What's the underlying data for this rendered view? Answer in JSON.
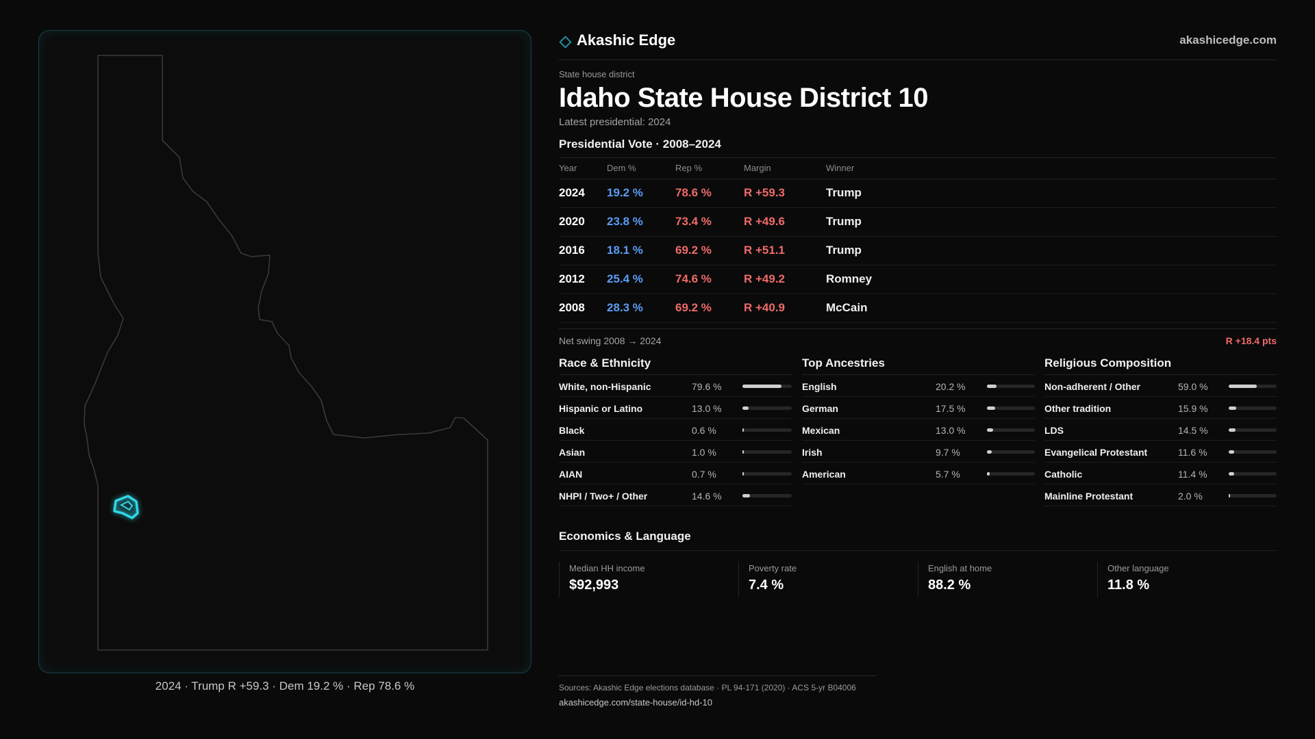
{
  "brand": {
    "name": "Akashic Edge",
    "url": "akashicedge.com",
    "icon": "diamond-icon",
    "accent": "#1f8f9c"
  },
  "district": {
    "eyebrow": "State house district",
    "title": "Idaho State House District 10",
    "latest": "Latest presidential: 2024"
  },
  "vote": {
    "title": "Presidential Vote · 2008–2024",
    "headers": {
      "year": "Year",
      "dem": "Dem %",
      "rep": "Rep %",
      "margin": "Margin",
      "winner": "Winner"
    },
    "rows": [
      {
        "year": "2024",
        "dem": "19.2 %",
        "rep": "78.6 %",
        "margin": "R +59.3",
        "winner": "Trump"
      },
      {
        "year": "2020",
        "dem": "23.8 %",
        "rep": "73.4 %",
        "margin": "R +49.6",
        "winner": "Trump"
      },
      {
        "year": "2016",
        "dem": "18.1 %",
        "rep": "69.2 %",
        "margin": "R +51.1",
        "winner": "Trump"
      },
      {
        "year": "2012",
        "dem": "25.4 %",
        "rep": "74.6 %",
        "margin": "R +49.2",
        "winner": "Romney"
      },
      {
        "year": "2008",
        "dem": "28.3 %",
        "rep": "69.2 %",
        "margin": "R +40.9",
        "winner": "McCain"
      }
    ],
    "colors": {
      "dem": "#5b9cf5",
      "rep": "#f06a6a"
    }
  },
  "swing": {
    "label": "Net swing 2008 → 2024",
    "value": "R +18.4 pts"
  },
  "race": {
    "title": "Race & Ethnicity",
    "items": [
      {
        "label": "White, non-Hispanic",
        "value": "79.6 %",
        "pct": 79.6
      },
      {
        "label": "Hispanic or Latino",
        "value": "13.0 %",
        "pct": 13.0
      },
      {
        "label": "Black",
        "value": "0.6 %",
        "pct": 0.6
      },
      {
        "label": "Asian",
        "value": "1.0 %",
        "pct": 1.0
      },
      {
        "label": "AIAN",
        "value": "0.7 %",
        "pct": 0.7
      },
      {
        "label": "NHPI / Two+ / Other",
        "value": "14.6 %",
        "pct": 14.6
      }
    ]
  },
  "ancestry": {
    "title": "Top Ancestries",
    "items": [
      {
        "label": "English",
        "value": "20.2 %",
        "pct": 20.2
      },
      {
        "label": "German",
        "value": "17.5 %",
        "pct": 17.5
      },
      {
        "label": "Mexican",
        "value": "13.0 %",
        "pct": 13.0
      },
      {
        "label": "Irish",
        "value": "9.7 %",
        "pct": 9.7
      },
      {
        "label": "American",
        "value": "5.7 %",
        "pct": 5.7
      }
    ]
  },
  "religion": {
    "title": "Religious Composition",
    "items": [
      {
        "label": "Non-adherent / Other",
        "value": "59.0 %",
        "pct": 59.0
      },
      {
        "label": "Other tradition",
        "value": "15.9 %",
        "pct": 15.9
      },
      {
        "label": "LDS",
        "value": "14.5 %",
        "pct": 14.5
      },
      {
        "label": "Evangelical Protestant",
        "value": "11.6 %",
        "pct": 11.6
      },
      {
        "label": "Catholic",
        "value": "11.4 %",
        "pct": 11.4
      },
      {
        "label": "Mainline Protestant",
        "value": "2.0 %",
        "pct": 2.0
      }
    ]
  },
  "econ": {
    "title": "Economics & Language",
    "items": [
      {
        "label": "Median HH income",
        "value": "$92,993"
      },
      {
        "label": "Poverty rate",
        "value": "7.4 %"
      },
      {
        "label": "English at home",
        "value": "88.2 %"
      },
      {
        "label": "Other language",
        "value": "11.8 %"
      }
    ]
  },
  "map": {
    "caption": "2024 · Trump R +59.3 · Dem 19.2 % · Rep 78.6 %",
    "highlight_color": "#2fd6e6"
  },
  "sources": {
    "line1": "Sources: Akashic Edge elections database · PL 94-171 (2020) · ACS 5-yr B04006",
    "line2": "akashicedge.com/state-house/id-hd-10"
  }
}
